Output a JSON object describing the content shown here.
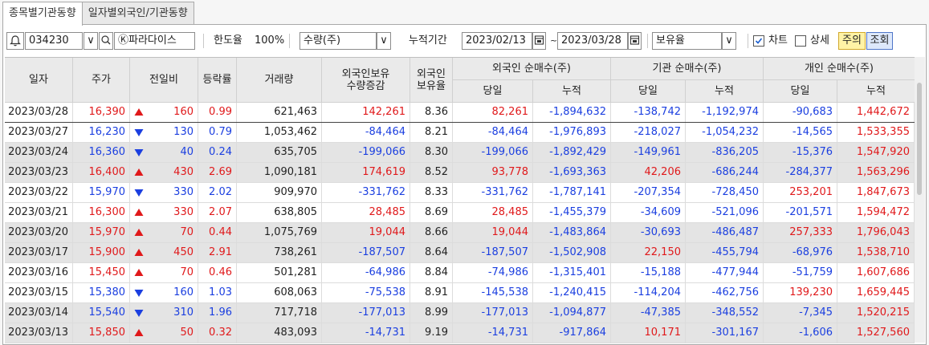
{
  "tabs": [
    "종목별기관동향",
    "일자별외국인/기관동향"
  ],
  "toolbar": {
    "stock_code": "034230",
    "stock_name": "Ⓚ파라다이스",
    "limit_label": "한도율",
    "limit_value": "100%",
    "qty_select": "수량(주)",
    "period_label": "누적기간",
    "date_from": "2023/02/13",
    "date_to": "2023/03/28",
    "holding_select": "보유율",
    "chart_label": "차트",
    "chart_checked": true,
    "detail_label": "상세",
    "detail_checked": false,
    "btn_order": "주의",
    "btn_search": "조회"
  },
  "headers": {
    "date": "일자",
    "price": "주가",
    "change": "전일비",
    "rate": "등락률",
    "volume": "거래량",
    "foreign_hold_1": "외국인보유",
    "foreign_hold_2": "수량증감",
    "foreign_ratio_1": "외국인",
    "foreign_ratio_2": "보유율",
    "foreign_net": "외국인 순매수(주)",
    "inst_net": "기관 순매수(주)",
    "indiv_net": "개인 순매수(주)",
    "day": "당일",
    "cum": "누적"
  },
  "rows": [
    {
      "date": "2023/03/28",
      "price": "16,390",
      "dir": "up",
      "change": "160",
      "rate": "0.99",
      "volume": "621,463",
      "fhold": "142,261",
      "fratio": "8.36",
      "fday": "82,261",
      "fcum": "-1,894,632",
      "iday": "-138,742",
      "icum": "-1,192,974",
      "pday": "-90,683",
      "pcum": "1,442,672"
    },
    {
      "date": "2023/03/27",
      "price": "16,230",
      "dir": "down",
      "change": "130",
      "rate": "0.79",
      "volume": "1,053,462",
      "fhold": "-84,464",
      "fratio": "8.21",
      "fday": "-84,464",
      "fcum": "-1,976,893",
      "iday": "-218,027",
      "icum": "-1,054,232",
      "pday": "-14,565",
      "pcum": "1,533,355"
    },
    {
      "date": "2023/03/24",
      "price": "16,360",
      "dir": "down",
      "change": "40",
      "rate": "0.24",
      "volume": "635,705",
      "fhold": "-199,066",
      "fratio": "8.30",
      "fday": "-199,066",
      "fcum": "-1,892,429",
      "iday": "-149,961",
      "icum": "-836,205",
      "pday": "-15,376",
      "pcum": "1,547,920"
    },
    {
      "date": "2023/03/23",
      "price": "16,400",
      "dir": "up",
      "change": "430",
      "rate": "2.69",
      "volume": "1,090,181",
      "fhold": "174,619",
      "fratio": "8.52",
      "fday": "93,778",
      "fcum": "-1,693,363",
      "iday": "42,206",
      "icum": "-686,244",
      "pday": "-284,377",
      "pcum": "1,563,296"
    },
    {
      "date": "2023/03/22",
      "price": "15,970",
      "dir": "down",
      "change": "330",
      "rate": "2.02",
      "volume": "909,970",
      "fhold": "-331,762",
      "fratio": "8.33",
      "fday": "-331,762",
      "fcum": "-1,787,141",
      "iday": "-207,354",
      "icum": "-728,450",
      "pday": "253,201",
      "pcum": "1,847,673"
    },
    {
      "date": "2023/03/21",
      "price": "16,300",
      "dir": "up",
      "change": "330",
      "rate": "2.07",
      "volume": "638,805",
      "fhold": "28,485",
      "fratio": "8.69",
      "fday": "28,485",
      "fcum": "-1,455,379",
      "iday": "-34,609",
      "icum": "-521,096",
      "pday": "-201,571",
      "pcum": "1,594,472"
    },
    {
      "date": "2023/03/20",
      "price": "15,970",
      "dir": "up",
      "change": "70",
      "rate": "0.44",
      "volume": "1,075,769",
      "fhold": "19,044",
      "fratio": "8.66",
      "fday": "19,044",
      "fcum": "-1,483,864",
      "iday": "-30,693",
      "icum": "-486,487",
      "pday": "257,333",
      "pcum": "1,796,043"
    },
    {
      "date": "2023/03/17",
      "price": "15,900",
      "dir": "up",
      "change": "450",
      "rate": "2.91",
      "volume": "738,261",
      "fhold": "-187,507",
      "fratio": "8.64",
      "fday": "-187,507",
      "fcum": "-1,502,908",
      "iday": "22,150",
      "icum": "-455,794",
      "pday": "-68,976",
      "pcum": "1,538,710"
    },
    {
      "date": "2023/03/16",
      "price": "15,450",
      "dir": "up",
      "change": "70",
      "rate": "0.46",
      "volume": "501,281",
      "fhold": "-64,986",
      "fratio": "8.84",
      "fday": "-74,986",
      "fcum": "-1,315,401",
      "iday": "-15,188",
      "icum": "-477,944",
      "pday": "-51,759",
      "pcum": "1,607,686"
    },
    {
      "date": "2023/03/15",
      "price": "15,380",
      "dir": "down",
      "change": "160",
      "rate": "1.03",
      "volume": "608,063",
      "fhold": "-75,538",
      "fratio": "8.91",
      "fday": "-145,538",
      "fcum": "-1,240,415",
      "iday": "-114,204",
      "icum": "-462,756",
      "pday": "139,230",
      "pcum": "1,659,445"
    },
    {
      "date": "2023/03/14",
      "price": "15,540",
      "dir": "down",
      "change": "310",
      "rate": "1.96",
      "volume": "717,718",
      "fhold": "-177,013",
      "fratio": "8.99",
      "fday": "-177,013",
      "fcum": "-1,094,877",
      "iday": "-47,385",
      "icum": "-348,552",
      "pday": "-7,345",
      "pcum": "1,520,215"
    },
    {
      "date": "2023/03/13",
      "price": "15,850",
      "dir": "up",
      "change": "50",
      "rate": "0.32",
      "volume": "483,093",
      "fhold": "-14,731",
      "fratio": "9.19",
      "fday": "-14,731",
      "fcum": "-917,864",
      "iday": "10,171",
      "icum": "-301,167",
      "pday": "-1,606",
      "pcum": "1,527,560"
    }
  ],
  "colors": {
    "up": "#e0191b",
    "down": "#1b3fe0",
    "header_bg": "#eaeaea",
    "gray_row": "#e4e4e4"
  },
  "icons": {
    "alarm": "bell-icon",
    "search": "search-icon",
    "dropdown": "chevron-down-icon",
    "calendar": "calendar-icon",
    "up": "triangle-up-icon",
    "down": "triangle-down-icon"
  }
}
